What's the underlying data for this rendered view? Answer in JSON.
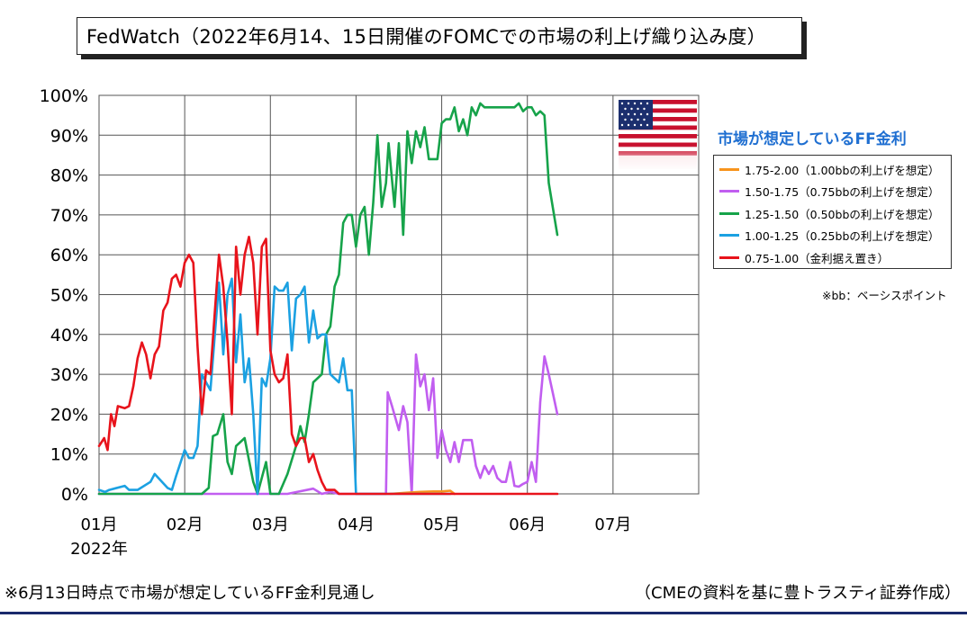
{
  "title": "FedWatch（2022年6月14、15日開催のFOMCでの市場の利上げ織り込み度）",
  "legend_title": "市場が想定しているFF金利",
  "note": "※bb：ベーシスポイント",
  "footer_left": "※6月13日時点で市場が想定しているFF金利見通し",
  "footer_right": "（CMEの資料を基に豊トラスティ証券作成）",
  "flag_icon": "us-flag-icon",
  "chart_data": {
    "type": "line",
    "title": "FedWatch（2022年6月14、15日開催のFOMCでの市場の利上げ織り込み度）",
    "xlabel": "",
    "ylabel": "",
    "x_range": [
      0,
      7
    ],
    "ylim": [
      0,
      100
    ],
    "grid": true,
    "legend_position": "right",
    "x_ticks": [
      {
        "pos": 0,
        "label": "01月"
      },
      {
        "pos": 1,
        "label": "02月"
      },
      {
        "pos": 2,
        "label": "03月"
      },
      {
        "pos": 3,
        "label": "04月"
      },
      {
        "pos": 4,
        "label": "05月"
      },
      {
        "pos": 5,
        "label": "06月"
      },
      {
        "pos": 6,
        "label": "07月"
      }
    ],
    "year_label": "2022年",
    "y_ticks": [
      0,
      10,
      20,
      30,
      40,
      50,
      60,
      70,
      80,
      90,
      100
    ],
    "y_tick_labels": [
      "0%",
      "10%",
      "20%",
      "30%",
      "40%",
      "50%",
      "60%",
      "70%",
      "80%",
      "90%",
      "100%"
    ],
    "series": [
      {
        "name": "1.75-2.00（1.00bbの利上げを想定）",
        "color": "#f7941d",
        "x": [
          3.4,
          3.6,
          3.75,
          3.9,
          4.0,
          4.1,
          4.15
        ],
        "y": [
          0,
          0.3,
          0.5,
          0.6,
          0.6,
          0.8,
          0
        ]
      },
      {
        "name": "1.50-1.75（0.75bbの利上げを想定）",
        "color": "#c15ef0",
        "x": [
          0,
          1.2,
          2.2,
          2.5,
          2.6,
          2.7,
          2.8,
          3.0,
          3.35,
          3.37,
          3.42,
          3.5,
          3.55,
          3.6,
          3.65,
          3.7,
          3.75,
          3.8,
          3.85,
          3.9,
          3.95,
          4.0,
          4.05,
          4.1,
          4.15,
          4.2,
          4.25,
          4.3,
          4.35,
          4.4,
          4.45,
          4.5,
          4.55,
          4.6,
          4.65,
          4.7,
          4.75,
          4.8,
          4.85,
          4.9,
          4.95,
          5.0,
          5.05,
          5.1,
          5.15,
          5.2,
          5.25,
          5.3,
          5.35,
          5.4
        ],
        "y": [
          0,
          0,
          0,
          1.3,
          0,
          0.5,
          0,
          0,
          0,
          25.5,
          22,
          16,
          22,
          18,
          0,
          35,
          27,
          30,
          21,
          29,
          9,
          16,
          11,
          8,
          13,
          8,
          13.5,
          13.5,
          13.5,
          7,
          4,
          7,
          5,
          7,
          4,
          3,
          3,
          8,
          2,
          1.8,
          2.5,
          3,
          8,
          3,
          23,
          34.5,
          30,
          25,
          20,
          15
        ],
        "visible_end": 5.35
      },
      {
        "name": "1.25-1.50（0.50bbの利上げを想定）",
        "color": "#16a34a",
        "x": [
          0,
          1.2,
          1.28,
          1.33,
          1.38,
          1.45,
          1.5,
          1.55,
          1.6,
          1.7,
          1.8,
          1.85,
          1.95,
          2.0,
          2.05,
          2.1,
          2.2,
          2.3,
          2.35,
          2.4,
          2.45,
          2.5,
          2.6,
          2.65,
          2.7,
          2.75,
          2.8,
          2.85,
          2.9,
          2.95,
          3.0,
          3.05,
          3.1,
          3.15,
          3.2,
          3.25,
          3.3,
          3.35,
          3.38,
          3.45,
          3.5,
          3.55,
          3.6,
          3.65,
          3.7,
          3.75,
          3.8,
          3.85,
          3.9,
          3.95,
          4.0,
          4.05,
          4.1,
          4.15,
          4.2,
          4.25,
          4.3,
          4.35,
          4.4,
          4.45,
          4.5,
          4.55,
          4.6,
          4.65,
          4.7,
          4.75,
          4.8,
          4.85,
          4.9,
          4.95,
          5.0,
          5.05,
          5.1,
          5.15,
          5.2,
          5.25,
          5.35
        ],
        "y": [
          0,
          0,
          1.5,
          14.5,
          15,
          20,
          8,
          5,
          12,
          14,
          3,
          0,
          8,
          0,
          0,
          0,
          5,
          12,
          17,
          13,
          20,
          28,
          30,
          40,
          42,
          52,
          55,
          68,
          70,
          70,
          62,
          70,
          72,
          60,
          73,
          90,
          72,
          78,
          88,
          72,
          88,
          65,
          91,
          83,
          91,
          87,
          92,
          84,
          84,
          84,
          93,
          94,
          94,
          97,
          91,
          94,
          90,
          97,
          95,
          98,
          97,
          97,
          97,
          97,
          97,
          97,
          97,
          97,
          98,
          96,
          97,
          97,
          95,
          96,
          95,
          78,
          65
        ],
        "visible_end": 5.35
      },
      {
        "name": "1.00-1.25（0.25bbの利上げを想定）",
        "color": "#1ba1e2",
        "x": [
          0,
          0.07,
          0.12,
          0.3,
          0.35,
          0.45,
          0.6,
          0.65,
          0.8,
          0.85,
          0.9,
          1.0,
          1.05,
          1.1,
          1.15,
          1.2,
          1.25,
          1.3,
          1.4,
          1.45,
          1.5,
          1.55,
          1.6,
          1.65,
          1.7,
          1.75,
          1.8,
          1.85,
          1.9,
          1.95,
          2.0,
          2.05,
          2.1,
          2.15,
          2.2,
          2.25,
          2.3,
          2.35,
          2.4,
          2.45,
          2.5,
          2.55,
          2.6,
          2.65,
          2.7,
          2.75,
          2.8,
          2.85,
          2.9,
          2.95,
          3.0,
          3.05,
          3.1,
          3.15,
          3.2,
          3.25,
          3.3,
          3.35,
          3.37,
          3.45,
          3.5,
          3.55,
          3.6,
          3.62,
          3.7,
          4.0,
          4.05,
          4.1
        ],
        "y": [
          1,
          0.5,
          1,
          2,
          1,
          1,
          3,
          5,
          1.5,
          1,
          4.5,
          11,
          9,
          9,
          12,
          30,
          28,
          26,
          53,
          35,
          50,
          54,
          33,
          45,
          28,
          34,
          20,
          0,
          29,
          27,
          34,
          52,
          51,
          51,
          53,
          36,
          49,
          50,
          52,
          38,
          46,
          39,
          40,
          40,
          30,
          29,
          28,
          34,
          26,
          26,
          0,
          0,
          0,
          0,
          0,
          0,
          0,
          0,
          0,
          0,
          0,
          0,
          0,
          0,
          0,
          0,
          0,
          0
        ]
      },
      {
        "name": "0.75-1.00（金利据え置き）",
        "color": "#e8131b",
        "x": [
          0,
          0.06,
          0.1,
          0.14,
          0.18,
          0.22,
          0.3,
          0.35,
          0.4,
          0.45,
          0.5,
          0.55,
          0.6,
          0.65,
          0.7,
          0.75,
          0.8,
          0.85,
          0.9,
          0.95,
          1.0,
          1.05,
          1.1,
          1.15,
          1.2,
          1.25,
          1.3,
          1.35,
          1.4,
          1.45,
          1.5,
          1.55,
          1.6,
          1.65,
          1.7,
          1.75,
          1.8,
          1.85,
          1.9,
          1.95,
          2.0,
          2.05,
          2.1,
          2.15,
          2.2,
          2.25,
          2.3,
          2.35,
          2.4,
          2.45,
          2.5,
          2.55,
          2.6,
          2.65,
          2.7,
          2.75,
          2.8,
          2.85,
          2.9,
          2.95,
          3.0,
          3.05,
          3.1,
          3.15,
          3.2,
          3.25,
          3.3,
          3.35,
          3.4,
          3.45,
          3.5,
          5.35
        ],
        "y": [
          12,
          14,
          11,
          20,
          17,
          22,
          21.5,
          22,
          27,
          34,
          38,
          35,
          29,
          35,
          37,
          46,
          48,
          54,
          55,
          52,
          58,
          60,
          58,
          37,
          20,
          31,
          30,
          45,
          60,
          52,
          38,
          20,
          62,
          50,
          60,
          64.5,
          58,
          40,
          62,
          64,
          36,
          30,
          28,
          29,
          35,
          15,
          12,
          14,
          14,
          8,
          10,
          6,
          3,
          1,
          1,
          1,
          0,
          0,
          0,
          0,
          0,
          0,
          0,
          0,
          0,
          0,
          0,
          0,
          0,
          0,
          0,
          0
        ]
      }
    ]
  }
}
